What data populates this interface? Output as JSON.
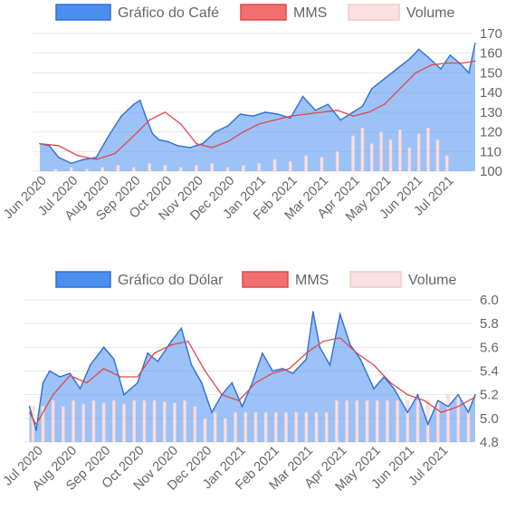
{
  "chart_data": [
    {
      "type": "area",
      "legend": [
        {
          "label": "Gráfico do Café",
          "color": "#4a8ff0",
          "border": "#2f6fd6"
        },
        {
          "label": "MMS",
          "color": "#f07070",
          "border": "#e04848"
        },
        {
          "label": "Volume",
          "color": "#fbe1e1",
          "border": "#f4c8c8"
        }
      ],
      "legend_position": "top",
      "x_labels": [
        "Jun 2020",
        "Jul 2020",
        "Aug 2020",
        "Sep 2020",
        "Oct 2020",
        "Nov 2020",
        "Dec 2020",
        "Jan 2021",
        "Feb 2021",
        "Mar 2021",
        "Apr 2021",
        "May 2021",
        "Jun 2021",
        "Jul 2021"
      ],
      "y_ticks": [
        100,
        110,
        120,
        130,
        140,
        150,
        160,
        170
      ],
      "ylim": [
        100,
        170
      ],
      "y_axis_side": "right",
      "grid": true,
      "series": [
        {
          "name": "Gráfico do Café",
          "style": "area",
          "x": [
            0,
            0.3,
            0.6,
            1.0,
            1.4,
            1.8,
            2.2,
            2.6,
            3.0,
            3.2,
            3.4,
            3.6,
            3.8,
            4.1,
            4.4,
            4.8,
            5.2,
            5.6,
            6.0,
            6.4,
            6.8,
            7.2,
            7.6,
            8.0,
            8.4,
            8.8,
            9.2,
            9.6,
            10.0,
            10.3,
            10.6,
            11.0,
            11.4,
            11.8,
            12.1,
            12.4,
            12.8,
            13.1,
            13.4,
            13.7,
            13.9
          ],
          "values": [
            114,
            113,
            107,
            104,
            106,
            107,
            118,
            128,
            134,
            136,
            127,
            119,
            116,
            115,
            113,
            112,
            114,
            120,
            123,
            129,
            128,
            130,
            129,
            127,
            138,
            131,
            134,
            126,
            130,
            133,
            142,
            147,
            152,
            157,
            162,
            158,
            152,
            159,
            155,
            150,
            165
          ]
        },
        {
          "name": "MMS",
          "style": "line",
          "x": [
            0,
            0.6,
            1.2,
            1.8,
            2.4,
            3.0,
            3.5,
            4.0,
            4.5,
            5.0,
            5.5,
            6.0,
            6.5,
            7.0,
            7.5,
            8.0,
            8.5,
            9.0,
            9.5,
            10.0,
            10.5,
            11.0,
            11.5,
            12.0,
            12.5,
            13.0,
            13.5,
            13.9
          ],
          "values": [
            114,
            113,
            108,
            106,
            109,
            118,
            126,
            130,
            124,
            114,
            112,
            115,
            120,
            124,
            126,
            128,
            129,
            130,
            131,
            128,
            130,
            134,
            142,
            150,
            154,
            155,
            155,
            156
          ]
        },
        {
          "name": "Volume",
          "style": "bar",
          "x": [
            0.5,
            1.0,
            1.5,
            2.0,
            2.5,
            3.0,
            3.5,
            4.0,
            4.5,
            5.0,
            5.5,
            6.0,
            6.5,
            7.0,
            7.5,
            8.0,
            8.5,
            9.0,
            9.5,
            10.0,
            10.3,
            10.6,
            10.9,
            11.2,
            11.5,
            11.8,
            12.1,
            12.4,
            12.7,
            13.0
          ],
          "values": [
            101,
            102,
            101,
            102,
            103,
            102,
            104,
            103,
            102,
            103,
            104,
            102,
            103,
            104,
            106,
            105,
            108,
            107,
            110,
            118,
            122,
            114,
            120,
            116,
            121,
            112,
            119,
            122,
            116,
            108
          ]
        }
      ]
    },
    {
      "type": "area",
      "legend": [
        {
          "label": "Gráfico do Dólar",
          "color": "#4a8ff0",
          "border": "#2f6fd6"
        },
        {
          "label": "MMS",
          "color": "#f07070",
          "border": "#e04848"
        },
        {
          "label": "Volume",
          "color": "#fbe1e1",
          "border": "#f4c8c8"
        }
      ],
      "legend_position": "top",
      "x_labels": [
        "Jul 2020",
        "Aug 2020",
        "Sep 2020",
        "Oct 2020",
        "Nov 2020",
        "Dec 2020",
        "Jan 2021",
        "Feb 2021",
        "Mar 2021",
        "Apr 2021",
        "May 2021",
        "Jun 2021",
        "Jul 2021"
      ],
      "y_ticks": [
        4.8,
        5.0,
        5.2,
        5.4,
        5.6,
        5.8,
        6.0
      ],
      "ylim": [
        4.8,
        6.0
      ],
      "y_axis_side": "right",
      "grid": true,
      "series": [
        {
          "name": "Gráfico do Dólar",
          "style": "area",
          "x": [
            -0.2,
            0,
            0.2,
            0.4,
            0.7,
            1.0,
            1.3,
            1.6,
            2.0,
            2.3,
            2.6,
            3.0,
            3.3,
            3.6,
            4.0,
            4.3,
            4.6,
            4.9,
            5.2,
            5.5,
            5.8,
            6.1,
            6.4,
            6.7,
            7.0,
            7.3,
            7.6,
            8.0,
            8.2,
            8.4,
            8.7,
            9.0,
            9.3,
            9.6,
            10.0,
            10.3,
            10.6,
            11.0,
            11.3,
            11.6,
            11.9,
            12.2,
            12.5,
            12.8,
            13.0
          ],
          "values": [
            5.1,
            4.9,
            5.3,
            5.4,
            5.35,
            5.38,
            5.25,
            5.45,
            5.6,
            5.5,
            5.2,
            5.3,
            5.55,
            5.48,
            5.65,
            5.76,
            5.45,
            5.3,
            5.05,
            5.2,
            5.3,
            5.1,
            5.3,
            5.55,
            5.4,
            5.42,
            5.38,
            5.5,
            5.9,
            5.6,
            5.45,
            5.88,
            5.62,
            5.5,
            5.25,
            5.35,
            5.25,
            5.05,
            5.2,
            4.95,
            5.15,
            5.1,
            5.2,
            5.05,
            5.2
          ]
        },
        {
          "name": "MMS",
          "style": "line",
          "x": [
            -0.2,
            0,
            0.5,
            1.0,
            1.5,
            2.0,
            2.5,
            3.0,
            3.5,
            4.0,
            4.5,
            5.0,
            5.5,
            6.0,
            6.5,
            7.0,
            7.5,
            8.0,
            8.5,
            9.0,
            9.5,
            10.0,
            10.5,
            11.0,
            11.5,
            12.0,
            12.5,
            13.0
          ],
          "values": [
            5.05,
            4.95,
            5.2,
            5.36,
            5.3,
            5.42,
            5.35,
            5.35,
            5.55,
            5.62,
            5.65,
            5.4,
            5.2,
            5.15,
            5.3,
            5.38,
            5.42,
            5.55,
            5.65,
            5.68,
            5.55,
            5.45,
            5.3,
            5.2,
            5.15,
            5.05,
            5.1,
            5.18
          ]
        },
        {
          "name": "Volume",
          "style": "bar",
          "x": [
            -0.1,
            0.2,
            0.5,
            0.8,
            1.1,
            1.4,
            1.7,
            2.0,
            2.3,
            2.6,
            2.9,
            3.2,
            3.5,
            3.8,
            4.1,
            4.4,
            4.7,
            5.0,
            5.3,
            5.6,
            5.9,
            6.2,
            6.5,
            6.8,
            7.1,
            7.4,
            7.7,
            8.0,
            8.3,
            8.6,
            8.9,
            9.2,
            9.5,
            9.8,
            10.1,
            10.4,
            10.7,
            11.0,
            11.3,
            11.6,
            11.9,
            12.2,
            12.5,
            12.8
          ],
          "values": [
            5.1,
            5.1,
            5.15,
            5.1,
            5.15,
            5.12,
            5.15,
            5.13,
            5.15,
            5.12,
            5.15,
            5.15,
            5.15,
            5.14,
            5.13,
            5.15,
            5.1,
            5.0,
            5.05,
            5.0,
            5.05,
            5.05,
            5.05,
            5.05,
            5.05,
            5.05,
            5.05,
            5.05,
            5.05,
            5.05,
            5.15,
            5.15,
            5.15,
            5.15,
            5.15,
            5.15,
            5.15,
            5.15,
            5.15,
            5.15,
            5.15,
            5.2,
            5.2,
            5.1
          ]
        }
      ]
    }
  ]
}
